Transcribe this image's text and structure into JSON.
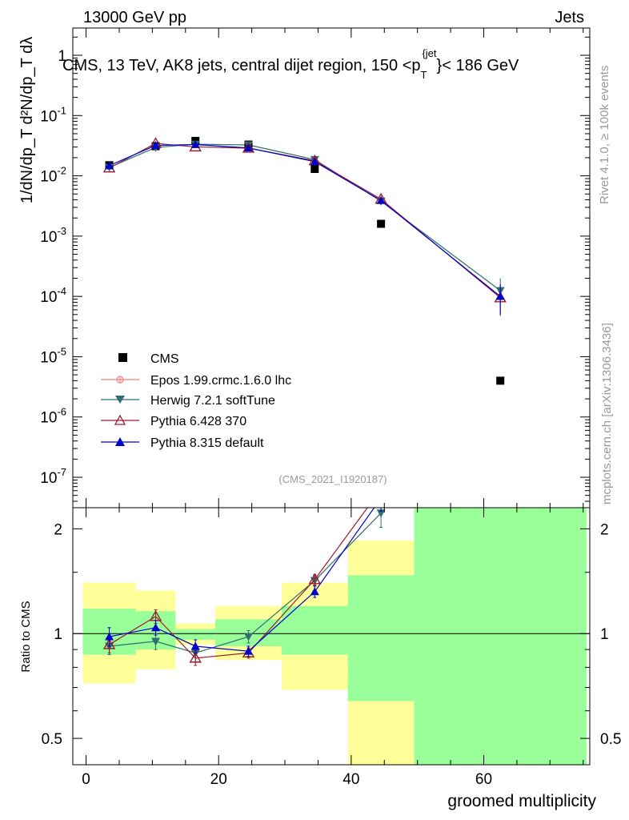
{
  "header": {
    "left": "13000 GeV pp",
    "right": "Jets"
  },
  "side": {
    "rivet": "Rivet 4.1.0, ≥ 100k events",
    "mcplots": "mcplots.cern.ch [arXiv:1306.3436]"
  },
  "colors": {
    "cms": "#000000",
    "epos": "#f08080",
    "herwig": "#2f6f6f",
    "pythia6": "#9b1c2e",
    "pythia8": "#0000cc",
    "band_yellow": "#ffff99",
    "band_green": "#99ff99"
  },
  "chart_data": [
    {
      "type": "scatter",
      "title": "CMS, 13 TeV, AK8 jets, central dijet region, 150 <p_T^{jet}< 186 GeV",
      "title_parts": {
        "main": "CMS, 13 TeV, AK8 jets, central dijet region, 150 <p",
        "sub": "T",
        "sup": "{jet",
        "tail": "}< 186 GeV"
      },
      "ylabel": "1/dN/dp_T d²N/dp_T dλ",
      "yscale": "log",
      "ylim": [
        2e-08,
        5
      ],
      "xlim": [
        -2,
        76
      ],
      "ytick_labels": [
        "10^-7",
        "10^-6",
        "10^-5",
        "10^-4",
        "10^-3",
        "10^-2",
        "10^-1",
        "1"
      ],
      "watermark": "(CMS_2021_I1920187)",
      "legend_position": "lower-left",
      "series": [
        {
          "name": "CMS",
          "key": "cms",
          "marker": "square",
          "x": [
            3.5,
            10.5,
            16.5,
            24.5,
            34.5,
            44.5,
            62.5
          ],
          "y": [
            0.015,
            0.031,
            0.038,
            0.033,
            0.013,
            0.0016,
            4e-06
          ]
        },
        {
          "name": "Epos 1.99.crmc.1.6.0 lhc",
          "key": "epos",
          "marker": "cross",
          "x": [],
          "y": []
        },
        {
          "name": "Herwig 7.2.1 softTune",
          "key": "herwig",
          "marker": "triangle-down",
          "x": [
            3.5,
            10.5,
            16.5,
            24.5,
            34.5,
            44.5,
            62.5
          ],
          "y": [
            0.0138,
            0.0295,
            0.0335,
            0.0325,
            0.0186,
            0.0038,
            0.000125
          ]
        },
        {
          "name": "Pythia 6.428 370",
          "key": "pythia6",
          "marker": "triangle-open",
          "x": [
            3.5,
            10.5,
            16.5,
            24.5,
            34.5,
            44.5,
            62.5
          ],
          "y": [
            0.0135,
            0.0345,
            0.0302,
            0.0288,
            0.0178,
            0.0041,
            9.5e-05
          ]
        },
        {
          "name": "Pythia 8.315 default",
          "key": "pythia8",
          "marker": "triangle",
          "x": [
            3.5,
            10.5,
            16.5,
            24.5,
            34.5,
            44.5,
            62.5
          ],
          "y": [
            0.0148,
            0.032,
            0.033,
            0.029,
            0.0172,
            0.0039,
            0.0001
          ]
        }
      ]
    },
    {
      "type": "line",
      "ylabel": "Ratio to CMS",
      "xlabel": "groomed multiplicity",
      "yscale": "log",
      "ylim": [
        0.42,
        2.3
      ],
      "xlim": [
        -2,
        76
      ],
      "yticks": [
        0.5,
        1,
        2
      ],
      "ytick_labels": [
        "0.5",
        "1",
        "2"
      ],
      "xticks": [
        0,
        20,
        40,
        60
      ],
      "xtick_labels": [
        "0",
        "20",
        "40",
        "60"
      ],
      "bins": [
        {
          "x0": -0.5,
          "x1": 7.5,
          "yellow": [
            0.72,
            1.4
          ],
          "green": [
            0.87,
            1.18
          ]
        },
        {
          "x0": 7.5,
          "x1": 13.5,
          "yellow": [
            0.79,
            1.33
          ],
          "green": [
            0.9,
            1.16
          ]
        },
        {
          "x0": 13.5,
          "x1": 19.5,
          "yellow": [
            0.93,
            1.07
          ],
          "green": [
            0.96,
            1.03
          ]
        },
        {
          "x0": 19.5,
          "x1": 29.5,
          "yellow": [
            0.84,
            1.2
          ],
          "green": [
            0.92,
            1.1
          ]
        },
        {
          "x0": 29.5,
          "x1": 39.5,
          "yellow": [
            0.69,
            1.4
          ],
          "green": [
            0.87,
            1.2
          ]
        },
        {
          "x0": 39.5,
          "x1": 49.5,
          "yellow": [
            0.42,
            1.85
          ],
          "green": [
            0.64,
            1.47
          ]
        },
        {
          "x0": 49.5,
          "x1": 75.5,
          "yellow": [
            0.42,
            2.3
          ],
          "green": [
            0.42,
            2.3
          ]
        }
      ],
      "series": [
        {
          "key": "herwig",
          "marker": "triangle-down",
          "x": [
            3.5,
            10.5,
            16.5,
            24.5,
            34.5,
            44.5
          ],
          "y": [
            0.92,
            0.95,
            0.88,
            0.98,
            1.42,
            2.22
          ],
          "err": [
            0.05,
            0.05,
            0.05,
            0.04,
            0.05,
            0.2
          ]
        },
        {
          "key": "pythia6",
          "marker": "triangle-open",
          "x": [
            3.5,
            10.5,
            16.5,
            24.5,
            34.5,
            44.5
          ],
          "y": [
            0.93,
            1.12,
            0.85,
            0.88,
            1.43,
            2.6
          ],
          "err": [
            0.05,
            0.05,
            0.04,
            0.03,
            0.05,
            0.2
          ]
        },
        {
          "key": "pythia8",
          "marker": "triangle",
          "x": [
            3.5,
            10.5,
            16.5,
            24.5,
            34.5,
            44.5
          ],
          "y": [
            0.98,
            1.04,
            0.92,
            0.89,
            1.32,
            2.45
          ],
          "err": [
            0.06,
            0.05,
            0.04,
            0.03,
            0.05,
            0.2
          ]
        }
      ]
    }
  ]
}
